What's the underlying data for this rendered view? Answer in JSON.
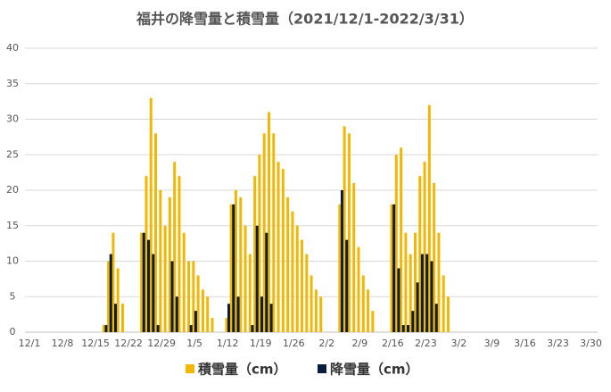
{
  "chart_data": {
    "type": "bar",
    "title": "福井の降雪量と積雪量（2021/12/1-2022/3/31）",
    "categories": [
      "12/1",
      null,
      null,
      null,
      null,
      null,
      null,
      "12/8",
      null,
      null,
      null,
      null,
      null,
      null,
      "12/15",
      null,
      null,
      null,
      null,
      null,
      null,
      "12/22",
      null,
      null,
      null,
      null,
      null,
      null,
      "12/29",
      null,
      null,
      null,
      null,
      null,
      null,
      "1/5",
      null,
      null,
      null,
      null,
      null,
      null,
      "1/12",
      null,
      null,
      null,
      null,
      null,
      null,
      "1/19",
      null,
      null,
      null,
      null,
      null,
      null,
      "1/26",
      null,
      null,
      null,
      null,
      null,
      null,
      "2/2",
      null,
      null,
      null,
      null,
      null,
      null,
      "2/9",
      null,
      null,
      null,
      null,
      null,
      null,
      "2/16",
      null,
      null,
      null,
      null,
      null,
      null,
      "2/23",
      null,
      null,
      null,
      null,
      null,
      null,
      "3/2",
      null,
      null,
      null,
      null,
      null,
      null,
      "3/9",
      null,
      null,
      null,
      null,
      null,
      null,
      "3/16",
      null,
      null,
      null,
      null,
      null,
      null,
      "3/23",
      null,
      null,
      null,
      null,
      null,
      null,
      "3/30",
      null
    ],
    "series": [
      {
        "name": "積雪量（cm）",
        "color": "#f2b705",
        "values": [
          0,
          0,
          0,
          0,
          0,
          0,
          0,
          0,
          0,
          0,
          0,
          0,
          0,
          0,
          0,
          0,
          1,
          10,
          14,
          9,
          4,
          0,
          0,
          0,
          14,
          22,
          33,
          28,
          20,
          15,
          19,
          24,
          22,
          14,
          10,
          10,
          8,
          6,
          5,
          2,
          0,
          0,
          2,
          18,
          20,
          19,
          15,
          11,
          22,
          25,
          28,
          31,
          28,
          24,
          23,
          19,
          17,
          15,
          13,
          11,
          8,
          6,
          5,
          0,
          0,
          0,
          18,
          29,
          28,
          21,
          12,
          8,
          6,
          3,
          0,
          0,
          0,
          18,
          25,
          26,
          14,
          11,
          14,
          22,
          24,
          32,
          21,
          14,
          8,
          5,
          0,
          0,
          0,
          0,
          0,
          0,
          0,
          0,
          0,
          0,
          0,
          0,
          0,
          0,
          0,
          0,
          0,
          0,
          0,
          0,
          0,
          0,
          0,
          0,
          0,
          0,
          0,
          0,
          0,
          0,
          0
        ]
      },
      {
        "name": "降雪量（cm）",
        "color": "#0b1d3d",
        "values": [
          0,
          0,
          0,
          0,
          0,
          0,
          0,
          0,
          0,
          0,
          0,
          0,
          0,
          0,
          0,
          0,
          1,
          11,
          4,
          0,
          0,
          0,
          0,
          0,
          14,
          13,
          11,
          1,
          0,
          0,
          10,
          5,
          0,
          0,
          1,
          3,
          0,
          0,
          0,
          0,
          0,
          0,
          4,
          18,
          5,
          0,
          0,
          1,
          15,
          5,
          14,
          4,
          0,
          0,
          0,
          0,
          0,
          0,
          0,
          0,
          0,
          0,
          0,
          0,
          0,
          0,
          20,
          13,
          0,
          0,
          0,
          0,
          0,
          0,
          0,
          0,
          0,
          18,
          9,
          1,
          1,
          3,
          7,
          11,
          11,
          10,
          4,
          0,
          0,
          0,
          0,
          0,
          0,
          0,
          0,
          0,
          0,
          0,
          0,
          0,
          0,
          0,
          0,
          0,
          0,
          0,
          0,
          0,
          0,
          0,
          0,
          0,
          0,
          0,
          0,
          0,
          0,
          0,
          0,
          0,
          0
        ]
      }
    ],
    "ylim": [
      0,
      40
    ],
    "yticks": [
      0,
      5,
      10,
      15,
      20,
      25,
      30,
      35,
      40
    ],
    "grid": true,
    "legend": "bottom"
  }
}
